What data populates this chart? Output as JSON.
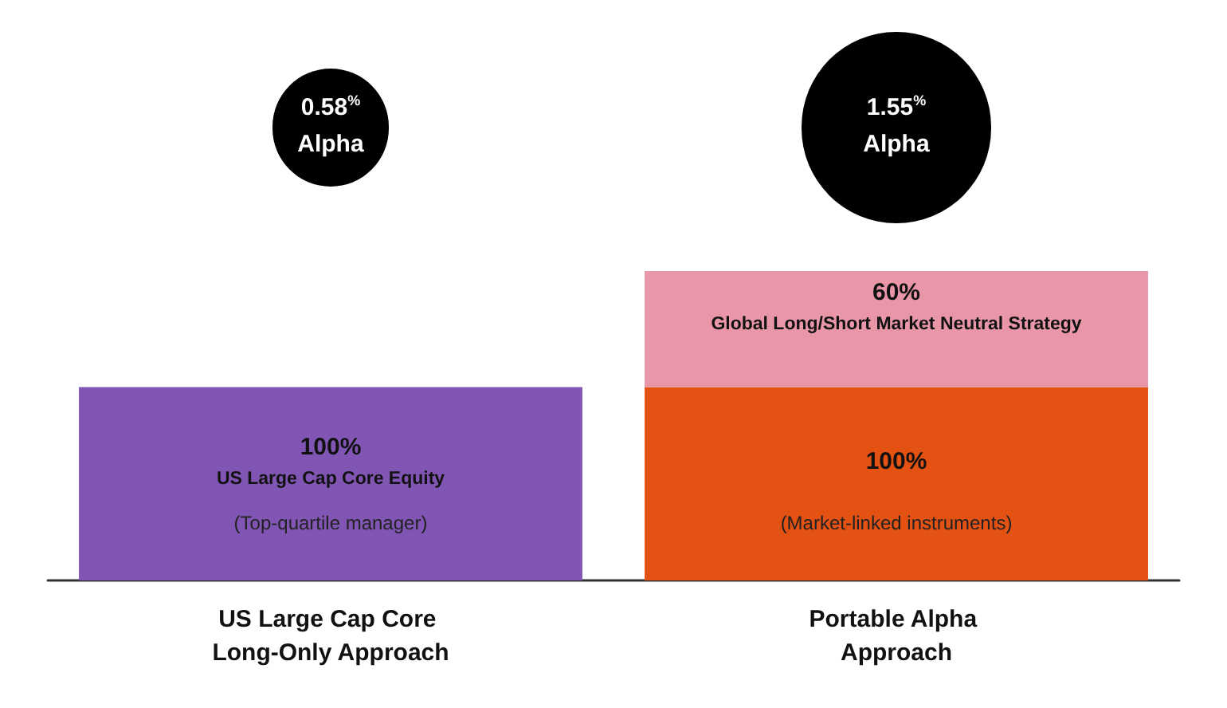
{
  "chart_data": {
    "type": "bar",
    "stacked": true,
    "categories": [
      "US Large Cap Core Long-Only Approach",
      "Portable Alpha Approach"
    ],
    "series": [
      {
        "name": "US Large Cap Core Equity",
        "color": "#8155b3",
        "values": [
          100,
          null
        ],
        "value_labels": [
          "100%",
          null
        ]
      },
      {
        "color": "#e35212",
        "values": [
          null,
          100
        ],
        "value_labels": [
          null,
          "100%"
        ]
      },
      {
        "name": "Global Long/Short Market Neutral Strategy",
        "color": "#e896a8",
        "values": [
          null,
          60
        ],
        "value_labels": [
          null,
          "60%"
        ]
      }
    ],
    "annotations": [
      "0.58$^{%}$ Alpha",
      "1.55$^{%}$ Alpha",
      "(Top-quartile manager)",
      "(Market-linked instruments)"
    ],
    "legend": false
  }
}
